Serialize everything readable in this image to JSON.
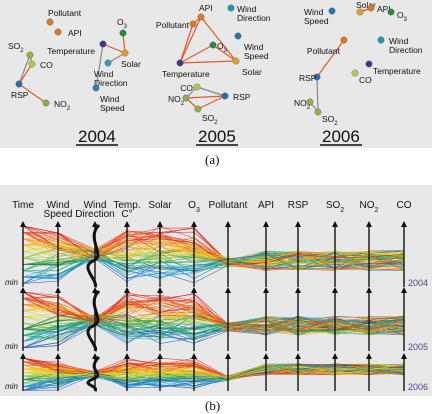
{
  "panel_a": {
    "caption": "(a)",
    "graphs": [
      {
        "year": "2004",
        "nodes": [
          {
            "label": "Pollutant",
            "color": "#d87a2c"
          },
          {
            "label": "API",
            "color": "#d87a2c"
          },
          {
            "label": "SO2",
            "color": "#9ab23a"
          },
          {
            "label": "CO",
            "color": "#b8c94a"
          },
          {
            "label": "Temperature",
            "color": "#3a3a8c"
          },
          {
            "label": "O3",
            "color": "#2a8a3a"
          },
          {
            "label": "Solar",
            "color": "#e0a020"
          },
          {
            "label": "Wind Direction",
            "color": "#3a9ab8"
          },
          {
            "label": "RSP",
            "color": "#2a6ab0"
          },
          {
            "label": "NO2",
            "color": "#8ab04a"
          },
          {
            "label": "Wind Speed",
            "color": "#3a7ab8"
          }
        ]
      },
      {
        "year": "2005",
        "nodes": [
          {
            "label": "Wind Direction",
            "color": "#1a9ab0"
          },
          {
            "label": "Pollutant",
            "color": "#e07a20"
          },
          {
            "label": "API",
            "color": "#e07a20"
          },
          {
            "label": "Wind Speed",
            "color": "#1a7ab8"
          },
          {
            "label": "O3",
            "color": "#2a8a3a"
          },
          {
            "label": "Temperature",
            "color": "#3a3a8c"
          },
          {
            "label": "Solar",
            "color": "#e0a020"
          },
          {
            "label": "CO",
            "color": "#b8c94a"
          },
          {
            "label": "NO2",
            "color": "#8ab04a"
          },
          {
            "label": "RSP",
            "color": "#2a6ab0"
          },
          {
            "label": "SO2",
            "color": "#9ab23a"
          }
        ]
      },
      {
        "year": "2006",
        "nodes": [
          {
            "label": "Wind Speed",
            "color": "#1a7ab8"
          },
          {
            "label": "Solar",
            "color": "#e0a020"
          },
          {
            "label": "API",
            "color": "#e07a20"
          },
          {
            "label": "O3",
            "color": "#2a8a3a"
          },
          {
            "label": "Wind Direction",
            "color": "#1a9ab0"
          },
          {
            "label": "Pollutant",
            "color": "#e07a20"
          },
          {
            "label": "Temperature",
            "color": "#3a3a8c"
          },
          {
            "label": "RSP",
            "color": "#2a6ab0"
          },
          {
            "label": "CO",
            "color": "#b8c94a"
          },
          {
            "label": "NO2",
            "color": "#8ab04a"
          },
          {
            "label": "SO2",
            "color": "#9ab23a"
          }
        ]
      }
    ]
  },
  "panel_b": {
    "caption": "(b)",
    "axis_headers": [
      {
        "main": "Time",
        "sub": ""
      },
      {
        "main": "Wind",
        "sub": "Speed"
      },
      {
        "main": "Wind",
        "sub": "Direction"
      },
      {
        "main": "Temp.",
        "sub": "C°"
      },
      {
        "main": "Solar",
        "sub": ""
      },
      {
        "main": "O3",
        "sub": ""
      },
      {
        "main": "Pollutant",
        "sub": ""
      },
      {
        "main": "API",
        "sub": ""
      },
      {
        "main": "RSP",
        "sub": ""
      },
      {
        "main": "SO2",
        "sub": ""
      },
      {
        "main": "NO2",
        "sub": ""
      },
      {
        "main": "CO",
        "sub": ""
      }
    ],
    "rows": [
      {
        "year": "2004",
        "min_label": "min"
      },
      {
        "year": "2005",
        "min_label": "min"
      },
      {
        "year": "2006",
        "min_label": "min"
      }
    ],
    "line_colors": [
      "#1a5fb4",
      "#1c9ad6",
      "#2bb673",
      "#1e8a3c",
      "#8cc63e",
      "#d4d72a",
      "#f7c51a",
      "#f39a1e",
      "#ea5a1e",
      "#d81e1e"
    ]
  }
}
